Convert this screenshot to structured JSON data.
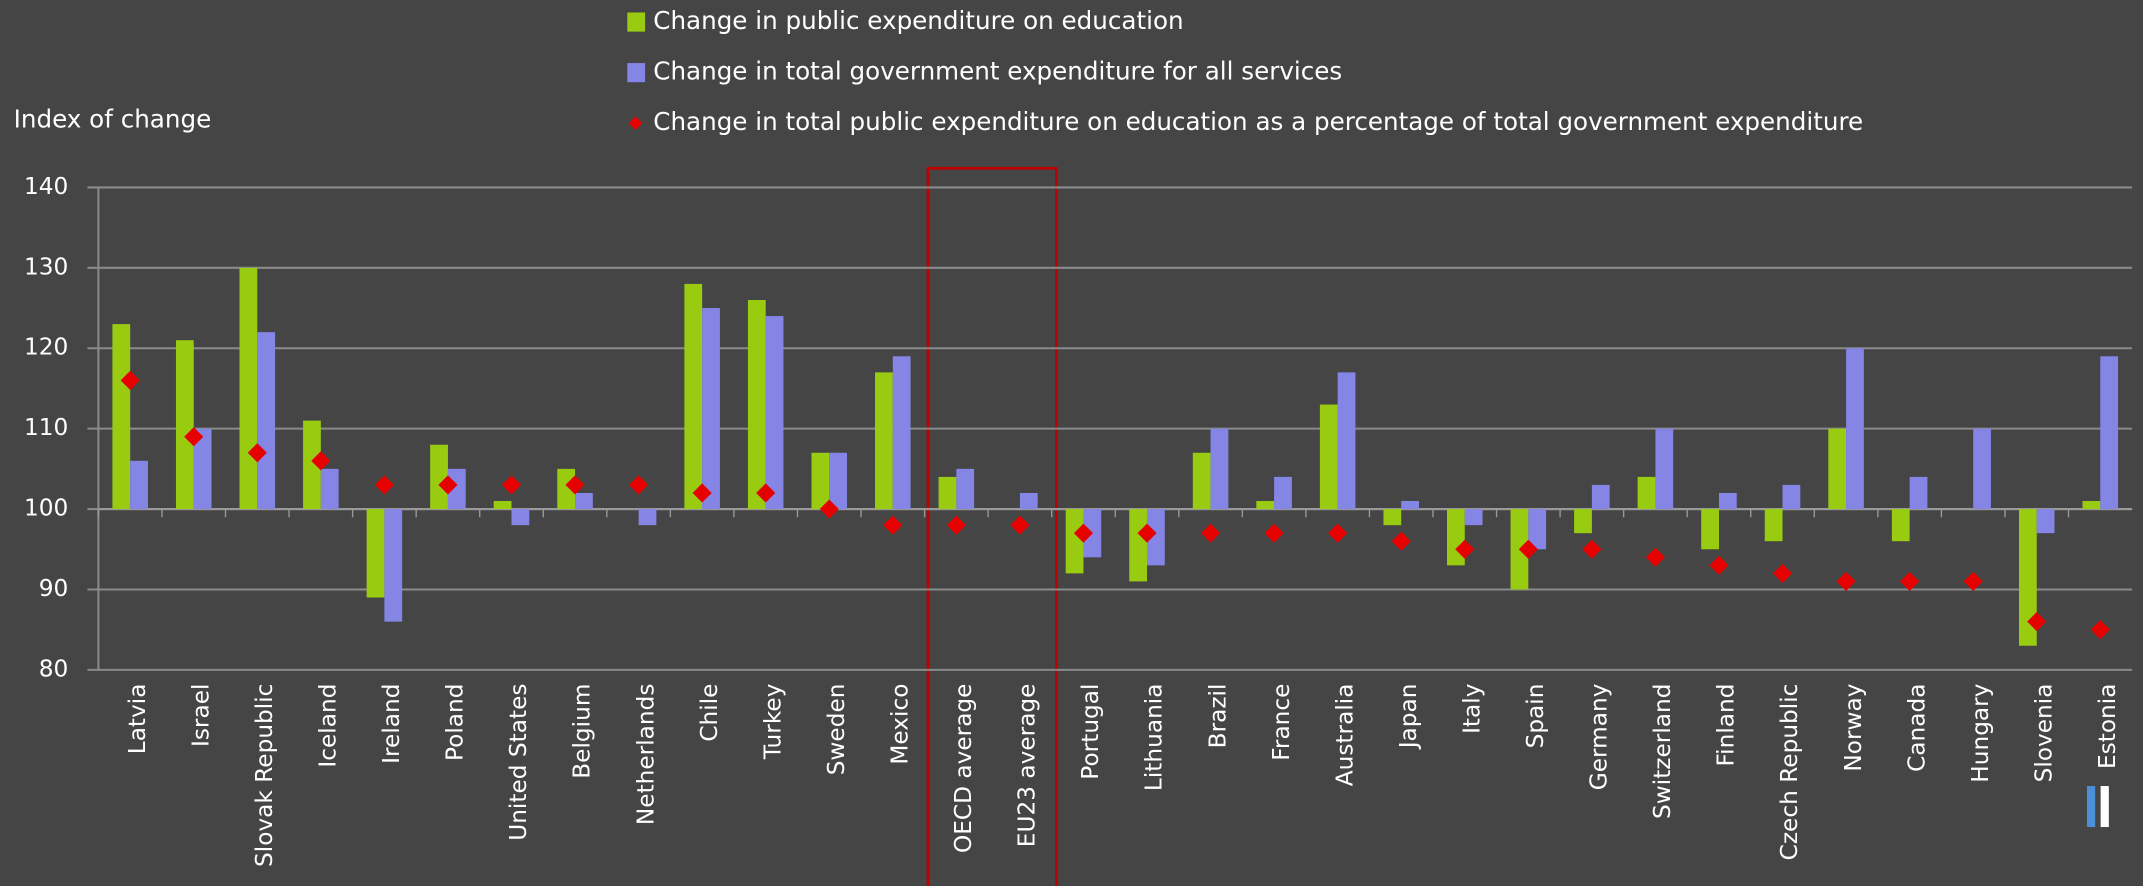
{
  "chart_data": {
    "type": "bar",
    "y_label": "Index of change",
    "categories": [
      "Latvia",
      "Israel",
      "Slovak Republic",
      "Iceland",
      "Ireland",
      "Poland",
      "United States",
      "Belgium",
      "Netherlands",
      "Chile",
      "Turkey",
      "Sweden",
      "Mexico",
      "OECD average",
      "EU23 average",
      "Portugal",
      "Lithuania",
      "Brazil",
      "France",
      "Australia",
      "Japan",
      "Italy",
      "Spain",
      "Germany",
      "Switzerland",
      "Finland",
      "Czech Republic",
      "Norway",
      "Canada",
      "Hungary",
      "Slovenia",
      "Estonia"
    ],
    "series": [
      {
        "name": "Change in public expenditure on education",
        "color": "#99cc11",
        "kind": "bar",
        "values": [
          123,
          121,
          130,
          111,
          89,
          108,
          101,
          105,
          100,
          128,
          126,
          107,
          117,
          104,
          100,
          92,
          91,
          107,
          101,
          113,
          98,
          93,
          90,
          97,
          104,
          95,
          96,
          110,
          96,
          100,
          83,
          101
        ]
      },
      {
        "name": "Change in total government expenditure for all services",
        "color": "#8585e6",
        "kind": "bar",
        "values": [
          106,
          110,
          122,
          105,
          86,
          105,
          98,
          102,
          98,
          125,
          124,
          107,
          119,
          105,
          102,
          94,
          93,
          110,
          104,
          117,
          101,
          98,
          95,
          103,
          110,
          102,
          103,
          120,
          104,
          110,
          97,
          119
        ]
      },
      {
        "name": "Change in total public expenditure on education as a percentage of total government expenditure",
        "color": "#e60000",
        "kind": "marker",
        "values": [
          116,
          109,
          107,
          106,
          103,
          103,
          103,
          103,
          103,
          102,
          102,
          100,
          98,
          98,
          98,
          97,
          97,
          97,
          97,
          97,
          96,
          95,
          95,
          95,
          94,
          93,
          92,
          91,
          91,
          91,
          86,
          85
        ]
      }
    ],
    "bar_base": 100,
    "ylim": [
      80,
      140
    ],
    "yticks": [
      80,
      90,
      100,
      110,
      120,
      130,
      140
    ],
    "grid": true
  }
}
